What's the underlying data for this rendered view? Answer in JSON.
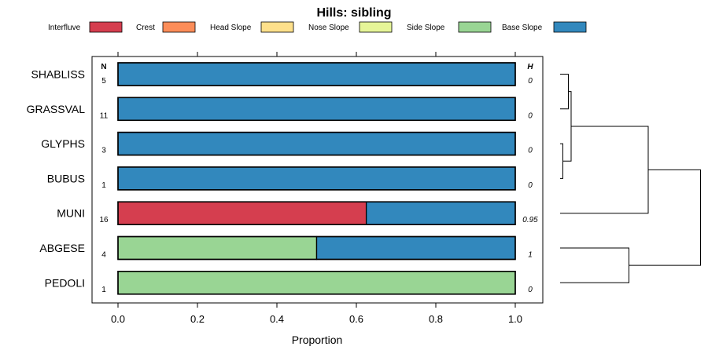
{
  "chart_data": {
    "type": "bar",
    "orientation": "horizontal",
    "stacked": true,
    "title": "Hills: sibling",
    "xlabel": "Proportion",
    "ylabel": "",
    "xlim": [
      -0.07,
      1.07
    ],
    "xticks": [
      "0.0",
      "0.2",
      "0.4",
      "0.6",
      "0.8",
      "1.0"
    ],
    "xtick_values": [
      0,
      0.2,
      0.4,
      0.6,
      0.8,
      1.0
    ],
    "n_header": "N",
    "h_header": "H",
    "legend_position": "top",
    "legend": [
      {
        "name": "Interfluve",
        "color": "#D53E4F"
      },
      {
        "name": "Crest",
        "color": "#FC8D59"
      },
      {
        "name": "Head Slope",
        "color": "#FEE08B"
      },
      {
        "name": "Nose Slope",
        "color": "#E6F598"
      },
      {
        "name": "Side Slope",
        "color": "#99D594"
      },
      {
        "name": "Base Slope",
        "color": "#3288BD"
      }
    ],
    "categories": [
      "SHABLISS",
      "GRASSVAL",
      "GLYPHS",
      "BUBUS",
      "MUNI",
      "ABGESE",
      "PEDOLI"
    ],
    "n": [
      "5",
      "11",
      "3",
      "1",
      "16",
      "4",
      "1"
    ],
    "h": [
      "0",
      "0",
      "0",
      "0",
      "0.95",
      "1",
      "0"
    ],
    "series": [
      {
        "name": "Interfluve",
        "values": [
          0,
          0,
          0,
          0,
          0.625,
          0,
          0
        ]
      },
      {
        "name": "Crest",
        "values": [
          0,
          0,
          0,
          0,
          0,
          0,
          0
        ]
      },
      {
        "name": "Head Slope",
        "values": [
          0,
          0,
          0,
          0,
          0,
          0,
          0
        ]
      },
      {
        "name": "Nose Slope",
        "values": [
          0,
          0,
          0,
          0,
          0,
          0,
          0
        ]
      },
      {
        "name": "Side Slope",
        "values": [
          0,
          0,
          0,
          0,
          0,
          0.5,
          1
        ]
      },
      {
        "name": "Base Slope",
        "values": [
          1,
          1,
          1,
          1,
          0.375,
          0.5,
          0
        ]
      }
    ],
    "dendrogram": {
      "merges": [
        {
          "left": "GLYPHS",
          "right": "BUBUS",
          "height": 0.01
        },
        {
          "left": "SHABLISS",
          "right": "GRASSVAL",
          "height": 0.03
        },
        {
          "left": "cluster:SHABLISS+GRASSVAL",
          "right": "cluster:GLYPHS+BUBUS",
          "height": 0.04
        },
        {
          "left": "ABGESE",
          "right": "PEDOLI",
          "height": 0.25
        },
        {
          "left": "cluster:SHABLISS+GRASSVAL+GLYPHS+BUBUS",
          "right": "MUNI",
          "height": 0.32
        },
        {
          "left": "cluster:SHABLISS+GRASSVAL+GLYPHS+BUBUS+MUNI",
          "right": "cluster:ABGESE+PEDOLI",
          "height": 0.51
        }
      ]
    }
  }
}
